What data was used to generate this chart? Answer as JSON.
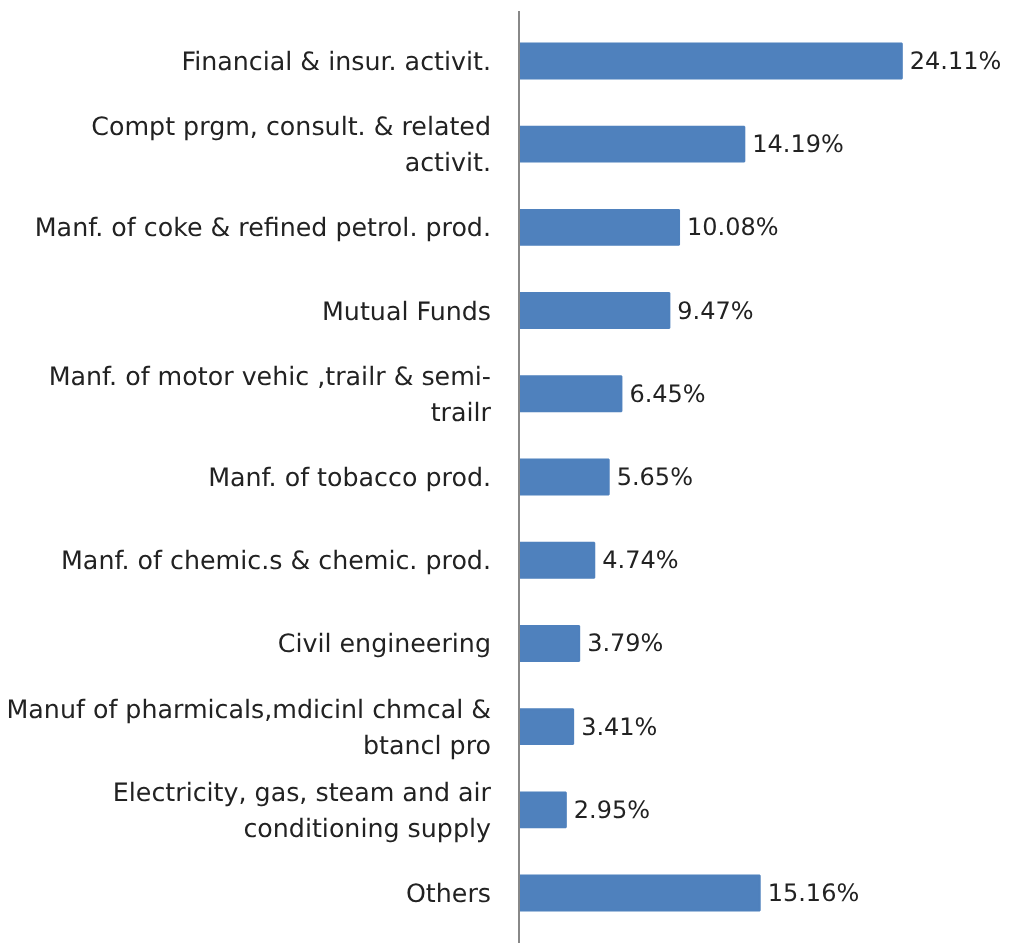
{
  "chart_data": {
    "type": "bar",
    "orientation": "horizontal",
    "categories": [
      "Financial & insur. activit.",
      "Compt prgm, consult. & related activit.",
      "Manf. of coke & refined petrol. prod.",
      "Mutual Funds",
      "Manf. of motor vehic ,trailr & semi-trailr",
      "Manf. of tobacco prod.",
      "Manf. of chemic.s & chemic. prod.",
      "Civil engineering",
      "Manuf of pharmicals,mdicinl chmcal & btancl pro",
      "Electricity, gas, steam and air conditioning supply",
      "Others"
    ],
    "values": [
      24.11,
      14.19,
      10.08,
      9.47,
      6.45,
      5.65,
      4.74,
      3.79,
      3.41,
      2.95,
      15.16
    ],
    "value_labels": [
      "24.11%",
      "14.19%",
      "10.08%",
      "9.47%",
      "6.45%",
      "5.65%",
      "4.74%",
      "3.79%",
      "3.41%",
      "2.95%",
      "15.16%"
    ],
    "color": "#4f81bd",
    "tick_labels": "y"
  }
}
